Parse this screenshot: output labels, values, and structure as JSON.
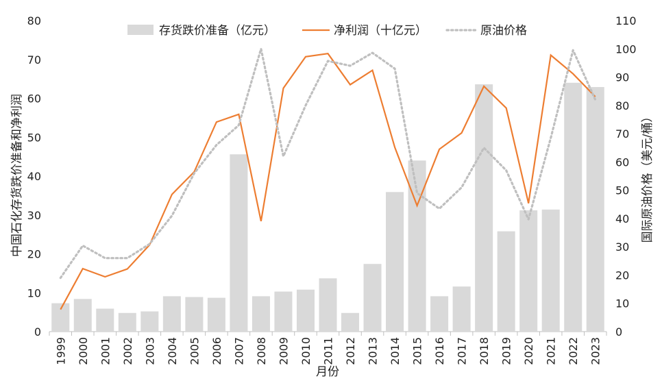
{
  "chart_data": {
    "type": "bar+line",
    "title": "",
    "xlabel": "月份",
    "ylabel_left": "中国石化存货跌价准备和净利润",
    "ylabel_right": "国际原油价格（美元/桶）",
    "ylim_left": [
      0,
      80
    ],
    "yticks_left": [
      0,
      10,
      20,
      30,
      40,
      50,
      60,
      70,
      80
    ],
    "ylim_right": [
      0,
      110
    ],
    "yticks_right": [
      0,
      10,
      20,
      30,
      40,
      50,
      60,
      70,
      80,
      90,
      100,
      110
    ],
    "categories": [
      "1999",
      "2000",
      "2001",
      "2002",
      "2003",
      "2004",
      "2005",
      "2006",
      "2007",
      "2008",
      "2009",
      "2010",
      "2011",
      "2012",
      "2013",
      "2014",
      "2015",
      "2016",
      "2017",
      "2018",
      "2019",
      "2020",
      "2021",
      "2022",
      "2023"
    ],
    "legend_position": "top",
    "series": [
      {
        "name": "存货跌价准备（亿元）",
        "kind": "bar",
        "axis": "left",
        "color": "#d9d9d9",
        "values": [
          7.3,
          8.4,
          5.9,
          4.8,
          5.2,
          9.1,
          8.9,
          8.7,
          45.6,
          9.1,
          10.3,
          10.8,
          13.7,
          4.8,
          17.4,
          35.9,
          44.0,
          9.1,
          11.6,
          63.6,
          25.8,
          31.2,
          31.4,
          64.0,
          62.9
        ]
      },
      {
        "name": "净利润（十亿元）",
        "kind": "line",
        "axis": "left",
        "color": "#ed7d31",
        "values": [
          5.7,
          16.2,
          14.1,
          16.1,
          22.3,
          35.3,
          41.1,
          53.9,
          55.9,
          28.4,
          62.6,
          70.7,
          71.5,
          63.5,
          67.2,
          47.4,
          32.4,
          46.9,
          51.1,
          63.1,
          57.5,
          33.0,
          71.1,
          66.3,
          60.4
        ]
      },
      {
        "name": "原油价格",
        "kind": "line",
        "style": "dotted",
        "axis": "right",
        "color": "#bfbfbf",
        "values": [
          19,
          30.4,
          26,
          26,
          31,
          41,
          56,
          66,
          73,
          100,
          62,
          80,
          95.7,
          94,
          98.6,
          93,
          49,
          43.5,
          51,
          65,
          57,
          39.7,
          68.5,
          99.5,
          82
        ]
      }
    ]
  }
}
